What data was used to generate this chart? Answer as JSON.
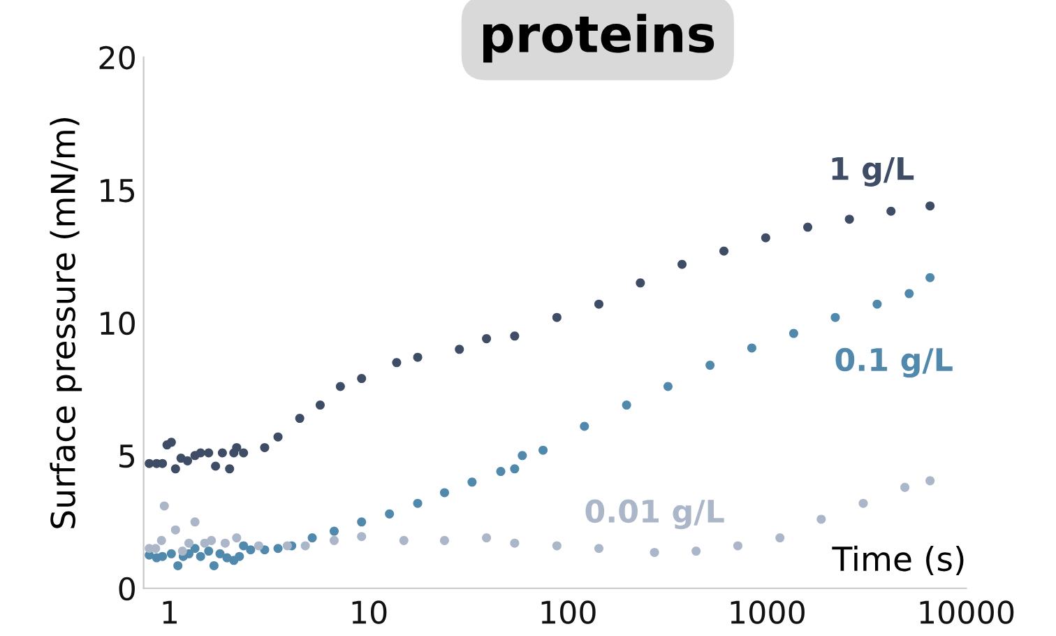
{
  "chart_data": {
    "type": "scatter",
    "title": "proteins",
    "xlabel": "Time (s)",
    "ylabel": "Surface pressure (mN/m)",
    "log": "x",
    "xlim": [
      0.74,
      10000
    ],
    "xticks": [
      1,
      10,
      100,
      1000,
      10000
    ],
    "ylim": [
      0,
      20
    ],
    "yticks": [
      0,
      5,
      10,
      15,
      20
    ],
    "grid": false,
    "legend": false,
    "marker": "circle",
    "series": [
      {
        "name": "1 g/L",
        "color": "#3e4c65",
        "x": [
          0.79,
          0.86,
          0.92,
          0.97,
          1.02,
          1.07,
          1.14,
          1.23,
          1.34,
          1.43,
          1.57,
          1.7,
          1.84,
          2.0,
          2.1,
          2.17,
          2.35,
          3.0,
          3.5,
          4.5,
          5.7,
          7.2,
          9.2,
          13.8,
          17.6,
          28.5,
          39,
          54,
          88,
          143,
          231,
          374,
          607,
          984,
          1600,
          2590,
          4190,
          6580
        ],
        "values": [
          4.7,
          4.7,
          4.7,
          5.4,
          5.5,
          4.5,
          4.9,
          4.8,
          5.0,
          5.1,
          5.1,
          4.6,
          5.1,
          4.5,
          5.1,
          5.3,
          5.1,
          5.3,
          5.7,
          6.4,
          6.9,
          7.6,
          7.9,
          8.5,
          8.7,
          9.0,
          9.4,
          9.5,
          10.2,
          10.7,
          11.5,
          12.2,
          12.7,
          13.2,
          13.6,
          13.9,
          14.2,
          14.4
        ]
      },
      {
        "name": "0.1 g/L",
        "color": "#5189ad",
        "x": [
          0.79,
          0.86,
          0.92,
          1.02,
          1.1,
          1.17,
          1.25,
          1.34,
          1.43,
          1.57,
          1.67,
          1.79,
          1.94,
          2.1,
          2.24,
          2.35,
          2.55,
          3.0,
          3.5,
          4.1,
          5.2,
          6.7,
          9.2,
          12.7,
          17.6,
          24,
          33,
          46,
          54,
          59,
          75,
          121,
          197,
          318,
          517,
          838,
          1360,
          2200,
          3570,
          5170,
          6580
        ],
        "values": [
          1.25,
          1.15,
          1.2,
          1.3,
          0.85,
          1.2,
          1.3,
          1.5,
          1.2,
          1.4,
          0.85,
          1.3,
          1.15,
          1.05,
          1.2,
          1.6,
          1.45,
          1.45,
          1.5,
          1.6,
          1.9,
          2.15,
          2.5,
          2.8,
          3.2,
          3.6,
          4.0,
          4.4,
          4.5,
          5.0,
          5.2,
          6.1,
          6.9,
          7.6,
          8.4,
          9.05,
          9.6,
          10.2,
          10.7,
          11.1,
          11.7
        ]
      },
      {
        "name": "0.01 g/L",
        "color": "#abb6c9",
        "x": [
          0.79,
          0.85,
          0.91,
          0.94,
          1.07,
          1.16,
          1.25,
          1.34,
          1.5,
          1.62,
          1.9,
          2.17,
          2.8,
          3.9,
          4.8,
          6.7,
          9.2,
          15,
          24,
          39,
          54,
          88,
          143,
          272,
          440,
          713,
          1160,
          1870,
          3040,
          4920,
          6580
        ],
        "values": [
          1.5,
          1.5,
          1.8,
          3.1,
          2.2,
          1.4,
          1.7,
          2.5,
          1.7,
          1.8,
          1.7,
          1.9,
          1.6,
          1.6,
          1.6,
          1.8,
          1.95,
          1.8,
          1.8,
          1.9,
          1.7,
          1.6,
          1.5,
          1.35,
          1.4,
          1.6,
          1.9,
          2.6,
          3.2,
          3.8,
          4.05
        ]
      }
    ]
  }
}
